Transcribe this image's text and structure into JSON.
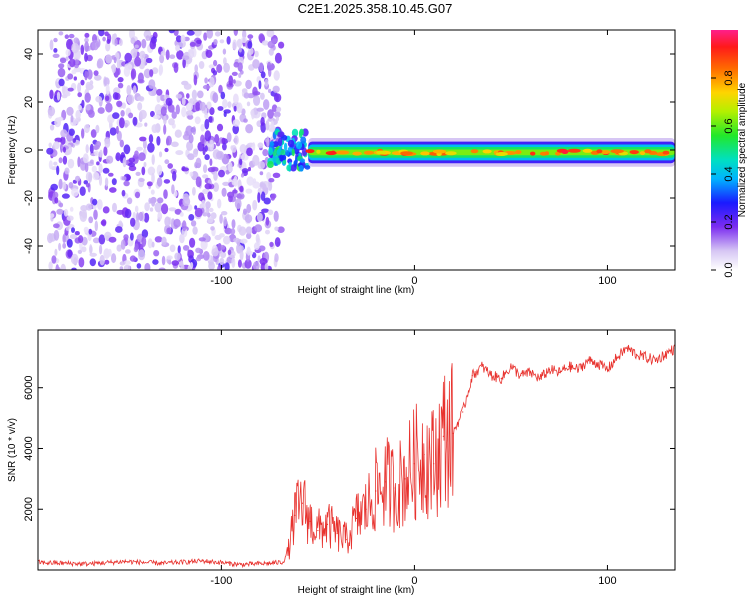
{
  "title": "C2E1.2025.358.10.45.G07",
  "chart_data": [
    {
      "type": "heatmap",
      "xlabel": "Height of straight line (km)",
      "ylabel": "Frequency (Hz)",
      "xlim": [
        -195,
        135
      ],
      "ylim": [
        -50,
        50
      ],
      "xticks": [
        -100,
        0,
        100
      ],
      "xtick_labels": [
        "-100",
        "0",
        "100"
      ],
      "yticks": [
        -40,
        -20,
        0,
        20,
        40
      ],
      "ytick_labels": [
        "-40",
        "-20",
        "0",
        "20",
        "40"
      ],
      "colorbar": {
        "label": "Normalized spectral amplitude",
        "range": [
          0,
          1
        ],
        "ticks": [
          0.0,
          0.2,
          0.4,
          0.6,
          0.8
        ],
        "tick_labels": [
          "0.0",
          "0.2",
          "0.4",
          "0.6",
          "0.8"
        ]
      },
      "regions": [
        {
          "name": "noise",
          "x_range": [
            -195,
            -75
          ],
          "freq_range": [
            -50,
            50
          ],
          "amplitude": 0.1
        },
        {
          "name": "transition",
          "x_range": [
            -75,
            -55
          ],
          "freq_center": 0,
          "freq_halfwidth": 8,
          "amplitude": 0.35
        },
        {
          "name": "carrier",
          "x_range": [
            -55,
            135
          ],
          "freq_center": -1,
          "freq_halfwidth": 3,
          "amplitude": 0.75
        }
      ]
    },
    {
      "type": "line",
      "xlabel": "Height of straight line (km)",
      "ylabel": "SNR (10 * v/v)",
      "xlim": [
        -195,
        135
      ],
      "ylim": [
        0,
        7900
      ],
      "xticks": [
        -100,
        0,
        100
      ],
      "xtick_labels": [
        "-100",
        "0",
        "100"
      ],
      "yticks": [
        2000,
        4000,
        6000
      ],
      "ytick_labels": [
        "2000",
        "4000",
        "6000"
      ],
      "color": "#e8322e",
      "series": [
        {
          "name": "SNR",
          "x": [
            -195,
            -170,
            -150,
            -130,
            -110,
            -90,
            -75,
            -68,
            -65,
            -62,
            -58,
            -54,
            -50,
            -45,
            -40,
            -35,
            -30,
            -25,
            -20,
            -15,
            -10,
            -5,
            0,
            5,
            10,
            15,
            20,
            25,
            30,
            35,
            40,
            45,
            50,
            55,
            60,
            65,
            70,
            75,
            80,
            85,
            90,
            95,
            100,
            105,
            110,
            115,
            120,
            125,
            130,
            135
          ],
          "y": [
            250,
            200,
            280,
            220,
            300,
            180,
            220,
            260,
            700,
            1800,
            2200,
            1600,
            1300,
            1500,
            1200,
            1000,
            1700,
            2000,
            2600,
            2900,
            2700,
            3000,
            3500,
            3800,
            3500,
            4400,
            4500,
            5200,
            6400,
            6700,
            6400,
            6300,
            6700,
            6400,
            6500,
            6300,
            6600,
            6500,
            6700,
            6600,
            6900,
            6800,
            6600,
            7000,
            7300,
            7100,
            7000,
            6900,
            7100,
            7300
          ]
        }
      ]
    }
  ]
}
